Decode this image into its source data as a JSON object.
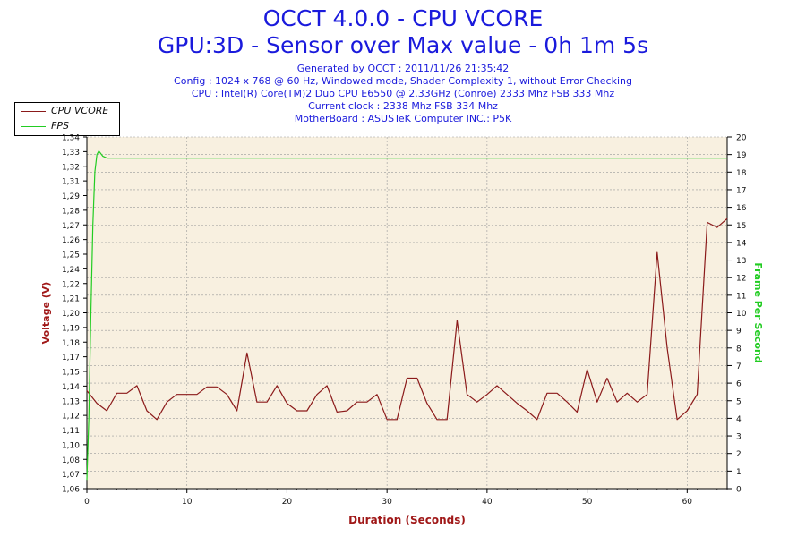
{
  "header": {
    "title": "OCCT 4.0.0 - CPU VCORE",
    "subtitle": "GPU:3D - Sensor over Max value - 0h 1m 5s",
    "info": [
      "Generated by OCCT : 2011/11/26 21:35:42",
      "Config : 1024 x 768 @ 60 Hz, Windowed mode, Shader Complexity 1, without Error Checking",
      "CPU : Intel(R) Core(TM)2 Duo CPU E6550 @ 2.33GHz (Conroe) 2333 Mhz FSB 333 Mhz",
      "Current clock : 2338 Mhz FSB 334 Mhz",
      "MotherBoard : ASUSTeK Computer INC.: P5K"
    ]
  },
  "legend": [
    {
      "label": "CPU VCORE",
      "color": "#8b1a1a"
    },
    {
      "label": "FPS",
      "color": "#22cc22"
    }
  ],
  "chart_data": {
    "type": "line",
    "xlabel": "Duration (Seconds)",
    "ylabel": "Voltage (V)",
    "y2label": "Frame Per Second",
    "xlim": [
      0,
      64
    ],
    "ylim": [
      1.06,
      1.34
    ],
    "y2lim": [
      0,
      20
    ],
    "x_ticks": [
      0,
      10,
      20,
      30,
      40,
      50,
      60
    ],
    "y_ticks": [
      "1,06",
      "1,07",
      "1,08",
      "1,10",
      "1,11",
      "1,12",
      "1,13",
      "1,14",
      "1,15",
      "1,17",
      "1,18",
      "1,19",
      "1,20",
      "1,21",
      "1,22",
      "1,24",
      "1,25",
      "1,26",
      "1,27",
      "1,28",
      "1,29",
      "1,31",
      "1,32",
      "1,33",
      "1,34"
    ],
    "y2_ticks": [
      0,
      1,
      2,
      3,
      4,
      5,
      6,
      7,
      8,
      9,
      10,
      11,
      12,
      13,
      14,
      15,
      16,
      17,
      18,
      19,
      20
    ],
    "grid": true,
    "background": "#f8f0e0",
    "series": [
      {
        "name": "CPU VCORE",
        "axis": "left",
        "color": "#8b1a1a",
        "x": [
          0,
          1,
          2,
          3,
          4,
          5,
          6,
          7,
          8,
          9,
          10,
          11,
          12,
          13,
          14,
          15,
          16,
          17,
          18,
          19,
          20,
          21,
          22,
          23,
          24,
          25,
          26,
          27,
          28,
          29,
          30,
          31,
          32,
          33,
          34,
          35,
          36,
          37,
          38,
          39,
          40,
          41,
          42,
          43,
          44,
          45,
          46,
          47,
          48,
          49,
          50,
          51,
          52,
          53,
          54,
          55,
          56,
          57,
          58,
          59,
          60,
          61,
          62,
          63,
          64
        ],
        "y": [
          1.138,
          1.128,
          1.122,
          1.136,
          1.136,
          1.142,
          1.122,
          1.115,
          1.129,
          1.135,
          1.135,
          1.135,
          1.141,
          1.141,
          1.135,
          1.122,
          1.168,
          1.129,
          1.129,
          1.142,
          1.128,
          1.122,
          1.122,
          1.135,
          1.142,
          1.121,
          1.122,
          1.129,
          1.129,
          1.135,
          1.115,
          1.115,
          1.148,
          1.148,
          1.128,
          1.115,
          1.115,
          1.194,
          1.135,
          1.129,
          1.135,
          1.142,
          1.135,
          1.128,
          1.122,
          1.115,
          1.136,
          1.136,
          1.129,
          1.121,
          1.155,
          1.129,
          1.148,
          1.129,
          1.136,
          1.129,
          1.135,
          1.248,
          1.172,
          1.115,
          1.122,
          1.135,
          1.272,
          1.268,
          1.275
        ]
      },
      {
        "name": "FPS",
        "axis": "right",
        "color": "#22cc22",
        "x": [
          0,
          0.2,
          0.4,
          0.6,
          0.8,
          1,
          1.2,
          1.6,
          2,
          3,
          64
        ],
        "y": [
          0.5,
          4,
          10,
          15,
          18,
          19,
          19.2,
          18.9,
          18.8,
          18.8,
          18.8
        ]
      }
    ]
  }
}
